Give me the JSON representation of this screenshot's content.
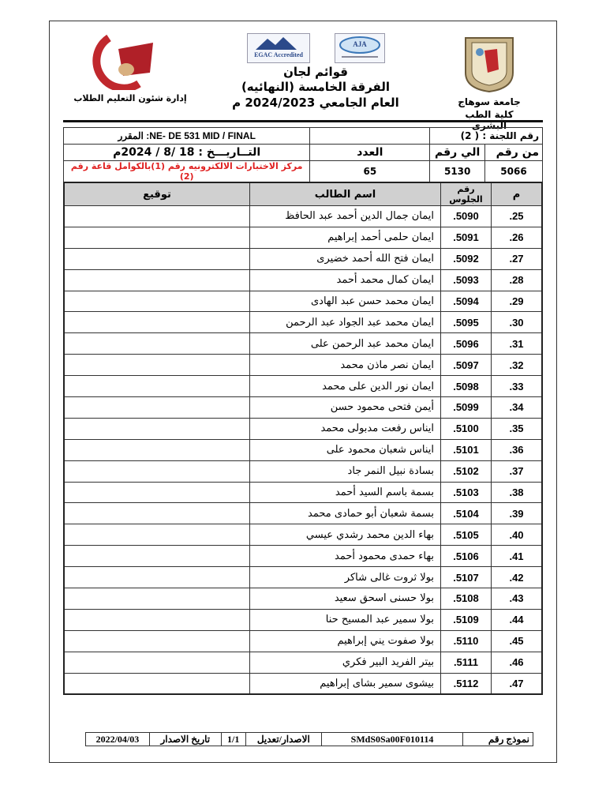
{
  "header": {
    "university_right": "جامعة سوهاج",
    "faculty_right": "كلية الطب البشرى",
    "title_line1": "قوائم لجان",
    "title_line2": "الفرقة الخامسة (النهائيه)",
    "title_line3": "العام الجامعي 2024/2023 م",
    "left_department": "إدارة شئون التعليم الطلاب",
    "logo_left_text": "جامعة سوهاج كلية الطب",
    "accreditation_logos": [
      "EGAC Accredited",
      "AJA"
    ]
  },
  "info": {
    "committee_label": "رقم اللجنة : ( 2)",
    "course": "NE- DE 531 MID / FINAL: المقرر",
    "from_label": "من رقم",
    "to_label": "الي رقم",
    "count_label": "العدد",
    "date": "التــاريـــخ :  18 /8 / 2024م",
    "from_value": "5066",
    "to_value": "5130",
    "count_value": "65",
    "location": "مركز الاختبارات الالكترونيه رقم (1)بالكوامل قاعة رقم (2)"
  },
  "table": {
    "headers": {
      "index": "م",
      "seat": "رقم الجلوس",
      "name": "اسم الطالب",
      "signature": "توقيع"
    },
    "rows": [
      {
        "index": ".25",
        "seat": ".5090",
        "name": "ايمان جمال الدين أحمد عبد الحافظ"
      },
      {
        "index": ".26",
        "seat": ".5091",
        "name": "ايمان حلمى أحمد إبراهيم"
      },
      {
        "index": ".27",
        "seat": ".5092",
        "name": "ايمان فتح الله أحمد  خضيرى"
      },
      {
        "index": ".28",
        "seat": ".5093",
        "name": "ايمان كمال محمد أحمد"
      },
      {
        "index": ".29",
        "seat": ".5094",
        "name": "ايمان محمد حسن عبد الهادى"
      },
      {
        "index": ".30",
        "seat": ".5095",
        "name": "ايمان محمد عبد الجواد عبد الرحمن"
      },
      {
        "index": ".31",
        "seat": ".5096",
        "name": "ايمان محمد عبد الرحمن على"
      },
      {
        "index": ".32",
        "seat": ".5097",
        "name": "ايمان نصر ماذن محمد"
      },
      {
        "index": ".33",
        "seat": ".5098",
        "name": "ايمان نور الدين على محمد"
      },
      {
        "index": ".34",
        "seat": ".5099",
        "name": "أيمن فتحى محمود حسن"
      },
      {
        "index": ".35",
        "seat": ".5100",
        "name": "ايناس رفعت مدبولى محمد"
      },
      {
        "index": ".36",
        "seat": ".5101",
        "name": "ايناس شعبان محمود على"
      },
      {
        "index": ".37",
        "seat": ".5102",
        "name": "بسادة نبيل النمر جاد"
      },
      {
        "index": ".38",
        "seat": ".5103",
        "name": "بسمة باسم السيد أحمد"
      },
      {
        "index": ".39",
        "seat": ".5104",
        "name": "بسمة شعبان أبو حمادى محمد"
      },
      {
        "index": ".40",
        "seat": ".5105",
        "name": "بهاء الدين محمد رشدي عيسي"
      },
      {
        "index": ".41",
        "seat": ".5106",
        "name": "بهاء حمدى محمود أحمد"
      },
      {
        "index": ".42",
        "seat": ".5107",
        "name": "بولا ثروت غالى شاكر"
      },
      {
        "index": ".43",
        "seat": ".5108",
        "name": "بولا حسنى اسحق سعيد"
      },
      {
        "index": ".44",
        "seat": ".5109",
        "name": "بولا سمير عبد المسيح حنا"
      },
      {
        "index": ".45",
        "seat": ".5110",
        "name": "بولا صفوت يني إبراهيم"
      },
      {
        "index": ".46",
        "seat": ".5111",
        "name": "بيتر الفريد البير فكري"
      },
      {
        "index": ".47",
        "seat": ".5112",
        "name": "بيشوى سمير بشاى إبراهيم"
      }
    ]
  },
  "footer": {
    "form_label": "نموذج رقم",
    "form_value": "SMdS0Sa00F010114",
    "version_label": "الاصدار/تعديل",
    "version_value": "1/1",
    "issue_date_label": "تاريخ الاصدار",
    "issue_date_value": "2022/04/03"
  },
  "colors": {
    "location_text": "#e02020",
    "header_fill": "#d0d0d0"
  }
}
